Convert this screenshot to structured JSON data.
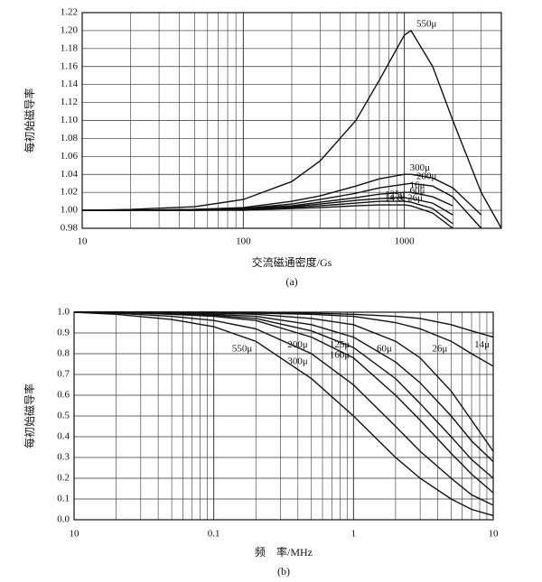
{
  "chart_data": [
    {
      "type": "line",
      "y_label": "每初始磁导率",
      "x_label": "交流磁通密度/Gs",
      "caption": "(a)",
      "log_x": true,
      "grid": true,
      "color": "#111",
      "xlim": [
        10,
        4000
      ],
      "xticks": [
        10,
        100,
        1000
      ],
      "ylim": [
        0.98,
        1.22
      ],
      "yticks": [
        0.98,
        {
          "value": 1,
          "label": "1.00"
        },
        1.02,
        1.04,
        1.06,
        1.08,
        {
          "value": 1.1,
          "label": "1.10"
        },
        1.12,
        1.14,
        1.16,
        1.18,
        {
          "value": 1.2,
          "label": "1.20"
        },
        1.22
      ],
      "x": [
        10,
        20,
        50,
        100,
        200,
        300,
        500,
        700,
        1000,
        1100,
        1500,
        2000,
        3000,
        4000
      ],
      "series": [
        {
          "name": "550μ",
          "values": [
            1.0,
            1.001,
            1.004,
            1.012,
            1.032,
            1.055,
            1.1,
            1.145,
            1.195,
            1.2,
            1.16,
            1.1,
            1.02,
            0.98
          ]
        },
        {
          "name": "300μ",
          "values": [
            1.0,
            1.0,
            1.001,
            1.003,
            1.01,
            1.016,
            1.027,
            1.035,
            1.04,
            1.04,
            1.036,
            1.025,
            0.995,
            null
          ]
        },
        {
          "name": "200μ",
          "values": [
            1.0,
            1.0,
            1.001,
            1.002,
            1.007,
            1.012,
            1.019,
            1.025,
            1.029,
            1.03,
            1.027,
            1.015,
            0.98,
            null
          ]
        },
        {
          "name": "16μ",
          "values": [
            1.0,
            1.0,
            1.0,
            1.002,
            1.005,
            1.009,
            1.014,
            1.018,
            1.02,
            1.02,
            1.015,
            1.005,
            null,
            null
          ]
        },
        {
          "name": "60μ",
          "values": [
            1.0,
            1.0,
            1.0,
            1.001,
            1.004,
            1.007,
            1.011,
            1.013,
            1.014,
            1.013,
            1.008,
            0.995,
            null,
            null
          ]
        },
        {
          "name": "125μ",
          "values": [
            1.0,
            1.0,
            1.0,
            1.001,
            1.003,
            1.005,
            1.008,
            1.01,
            1.01,
            1.009,
            1.002,
            0.985,
            null,
            null
          ]
        },
        {
          "name": "14 & 26μ",
          "values": [
            1.0,
            1.0,
            1.0,
            1.0,
            1.002,
            1.003,
            1.005,
            1.006,
            1.006,
            1.005,
            0.997,
            0.98,
            null,
            null
          ]
        }
      ]
    },
    {
      "type": "line",
      "y_label": "每初始磁导率",
      "x_label": "频　率/MHz",
      "caption": "(b)",
      "log_x": true,
      "grid": true,
      "color": "#111",
      "xlim": [
        0.01,
        10
      ],
      "xticks": [
        {
          "value": 0.01,
          "label": "10"
        },
        0.1,
        1,
        10
      ],
      "ylim": [
        0,
        1
      ],
      "yticks": [
        {
          "value": 0,
          "label": "0.0"
        },
        0.1,
        0.2,
        0.3,
        0.4,
        0.5,
        0.6,
        0.7,
        0.8,
        0.9,
        {
          "value": 1,
          "label": "1.0"
        }
      ],
      "x": [
        0.01,
        0.02,
        0.05,
        0.1,
        0.2,
        0.5,
        1,
        2,
        3,
        5,
        7,
        10
      ],
      "series": [
        {
          "name": "550μ",
          "values": [
            1.0,
            0.99,
            0.965,
            0.93,
            0.86,
            0.68,
            0.5,
            0.3,
            0.2,
            0.1,
            0.05,
            0.02
          ]
        },
        {
          "name": "300μ",
          "values": [
            1.0,
            0.995,
            0.98,
            0.96,
            0.92,
            0.8,
            0.65,
            0.45,
            0.33,
            0.2,
            0.12,
            0.07
          ]
        },
        {
          "name": "200μ",
          "values": [
            1.0,
            1.0,
            0.99,
            0.98,
            0.96,
            0.88,
            0.78,
            0.6,
            0.48,
            0.32,
            0.22,
            0.13
          ]
        },
        {
          "name": "160μ",
          "values": [
            1.0,
            1.0,
            0.99,
            0.985,
            0.97,
            0.91,
            0.83,
            0.68,
            0.56,
            0.4,
            0.29,
            0.2
          ]
        },
        {
          "name": "125μ",
          "values": [
            1.0,
            1.0,
            0.995,
            0.99,
            0.98,
            0.94,
            0.88,
            0.76,
            0.66,
            0.5,
            0.38,
            0.28
          ]
        },
        {
          "name": "60μ",
          "values": [
            1.0,
            1.0,
            1.0,
            0.995,
            0.99,
            0.97,
            0.94,
            0.86,
            0.78,
            0.62,
            0.48,
            0.33
          ]
        },
        {
          "name": "26μ",
          "values": [
            1.0,
            1.0,
            1.0,
            1.0,
            0.995,
            0.99,
            0.98,
            0.95,
            0.92,
            0.86,
            0.8,
            0.74
          ]
        },
        {
          "name": "14μ",
          "values": [
            1.0,
            1.0,
            1.0,
            1.0,
            1.0,
            0.995,
            0.99,
            0.98,
            0.97,
            0.94,
            0.91,
            0.88
          ]
        }
      ]
    }
  ]
}
